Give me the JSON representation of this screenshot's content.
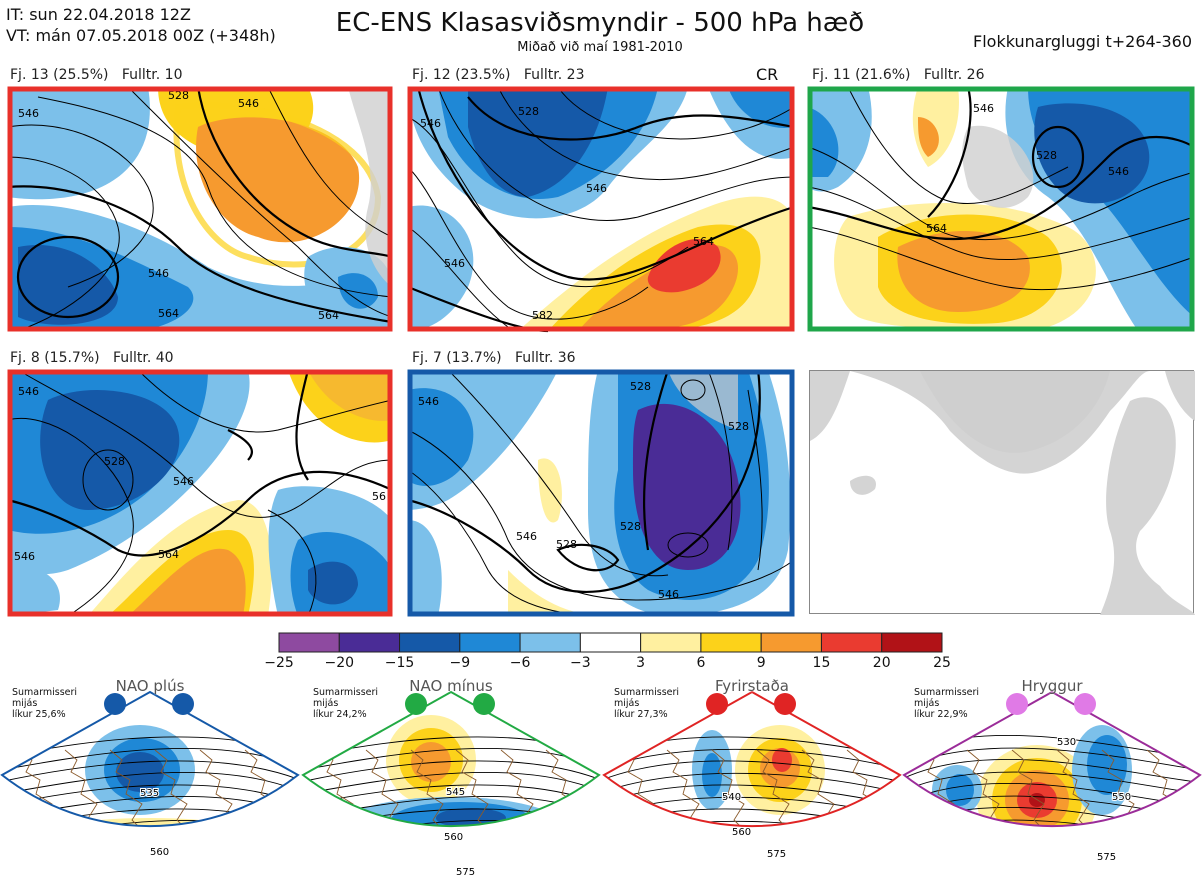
{
  "header": {
    "it_line": "IT: sun 22.04.2018 12Z",
    "vt_line": "VT: mán 07.05.2018 00Z  (+348h)",
    "title": "EC-ENS Klasasviðsmyndir - 500 hPa hæð",
    "subtitle": "Miðað við maí 1981-2010",
    "window": "Flokkunargluggi t+264-360"
  },
  "panels": [
    {
      "label": "Fj. 13 (25.5%)   Fulltr. 10",
      "border": "#e8302a",
      "contours": [
        "546",
        "528",
        "546",
        "564",
        "546",
        "564"
      ]
    },
    {
      "label": "Fj. 12 (23.5%)   Fulltr. 23",
      "tag": "CR",
      "border": "#e8302a",
      "contours": [
        "546",
        "528",
        "546",
        "564",
        "546",
        "582"
      ]
    },
    {
      "label": "Fj. 11 (21.6%)   Fulltr. 26",
      "border": "#1fa64a",
      "contours": [
        "546",
        "528",
        "546",
        "564"
      ]
    },
    {
      "label": "Fj. 8 (15.7%)   Fulltr. 40",
      "border": "#e8302a",
      "contours": [
        "546",
        "528",
        "546",
        "546",
        "564",
        "56"
      ]
    },
    {
      "label": "Fj. 7 (13.7%)   Fulltr. 36",
      "border": "#1559a8",
      "contours": [
        "546",
        "528",
        "528",
        "546",
        "528",
        "546",
        "528"
      ]
    }
  ],
  "colorbar": {
    "ticks": [
      "−25",
      "−20",
      "−15",
      "−9",
      "−6",
      "−3",
      "3",
      "6",
      "9",
      "15",
      "20",
      "25"
    ],
    "colors": [
      "#8e4aa0",
      "#4a2c96",
      "#1559a8",
      "#1f88d6",
      "#7cc0ea",
      "#ffffff",
      "#fff0a0",
      "#fcd21a",
      "#f69a2f",
      "#ea3b30",
      "#b11217"
    ]
  },
  "regimes": [
    {
      "name": "NAO plús",
      "note": [
        "Sumarmisseri",
        "mijás",
        "líkur 25,6%"
      ],
      "dot_color": "#1559a8",
      "frame": "#1559a8",
      "contours": [
        "535",
        "560"
      ]
    },
    {
      "name": "NAO mínus",
      "note": [
        "Sumarmisseri",
        "mijás",
        "líkur 24,2%"
      ],
      "dot_color": "#22aa44",
      "frame": "#22aa44",
      "contours": [
        "545",
        "560",
        "575"
      ]
    },
    {
      "name": "Fyrirstaða",
      "note": [
        "Sumarmisseri",
        "mijás",
        "líkur 27,3%"
      ],
      "dot_color": "#e02424",
      "frame": "#e02424",
      "contours": [
        "540",
        "560",
        "575"
      ]
    },
    {
      "name": "Hryggur",
      "note": [
        "Sumarmisseri",
        "mijás",
        "líkur 22,9%"
      ],
      "dot_color": "#e07ae6",
      "frame": "#9b2c99",
      "contours": [
        "530",
        "550",
        "575"
      ]
    }
  ]
}
